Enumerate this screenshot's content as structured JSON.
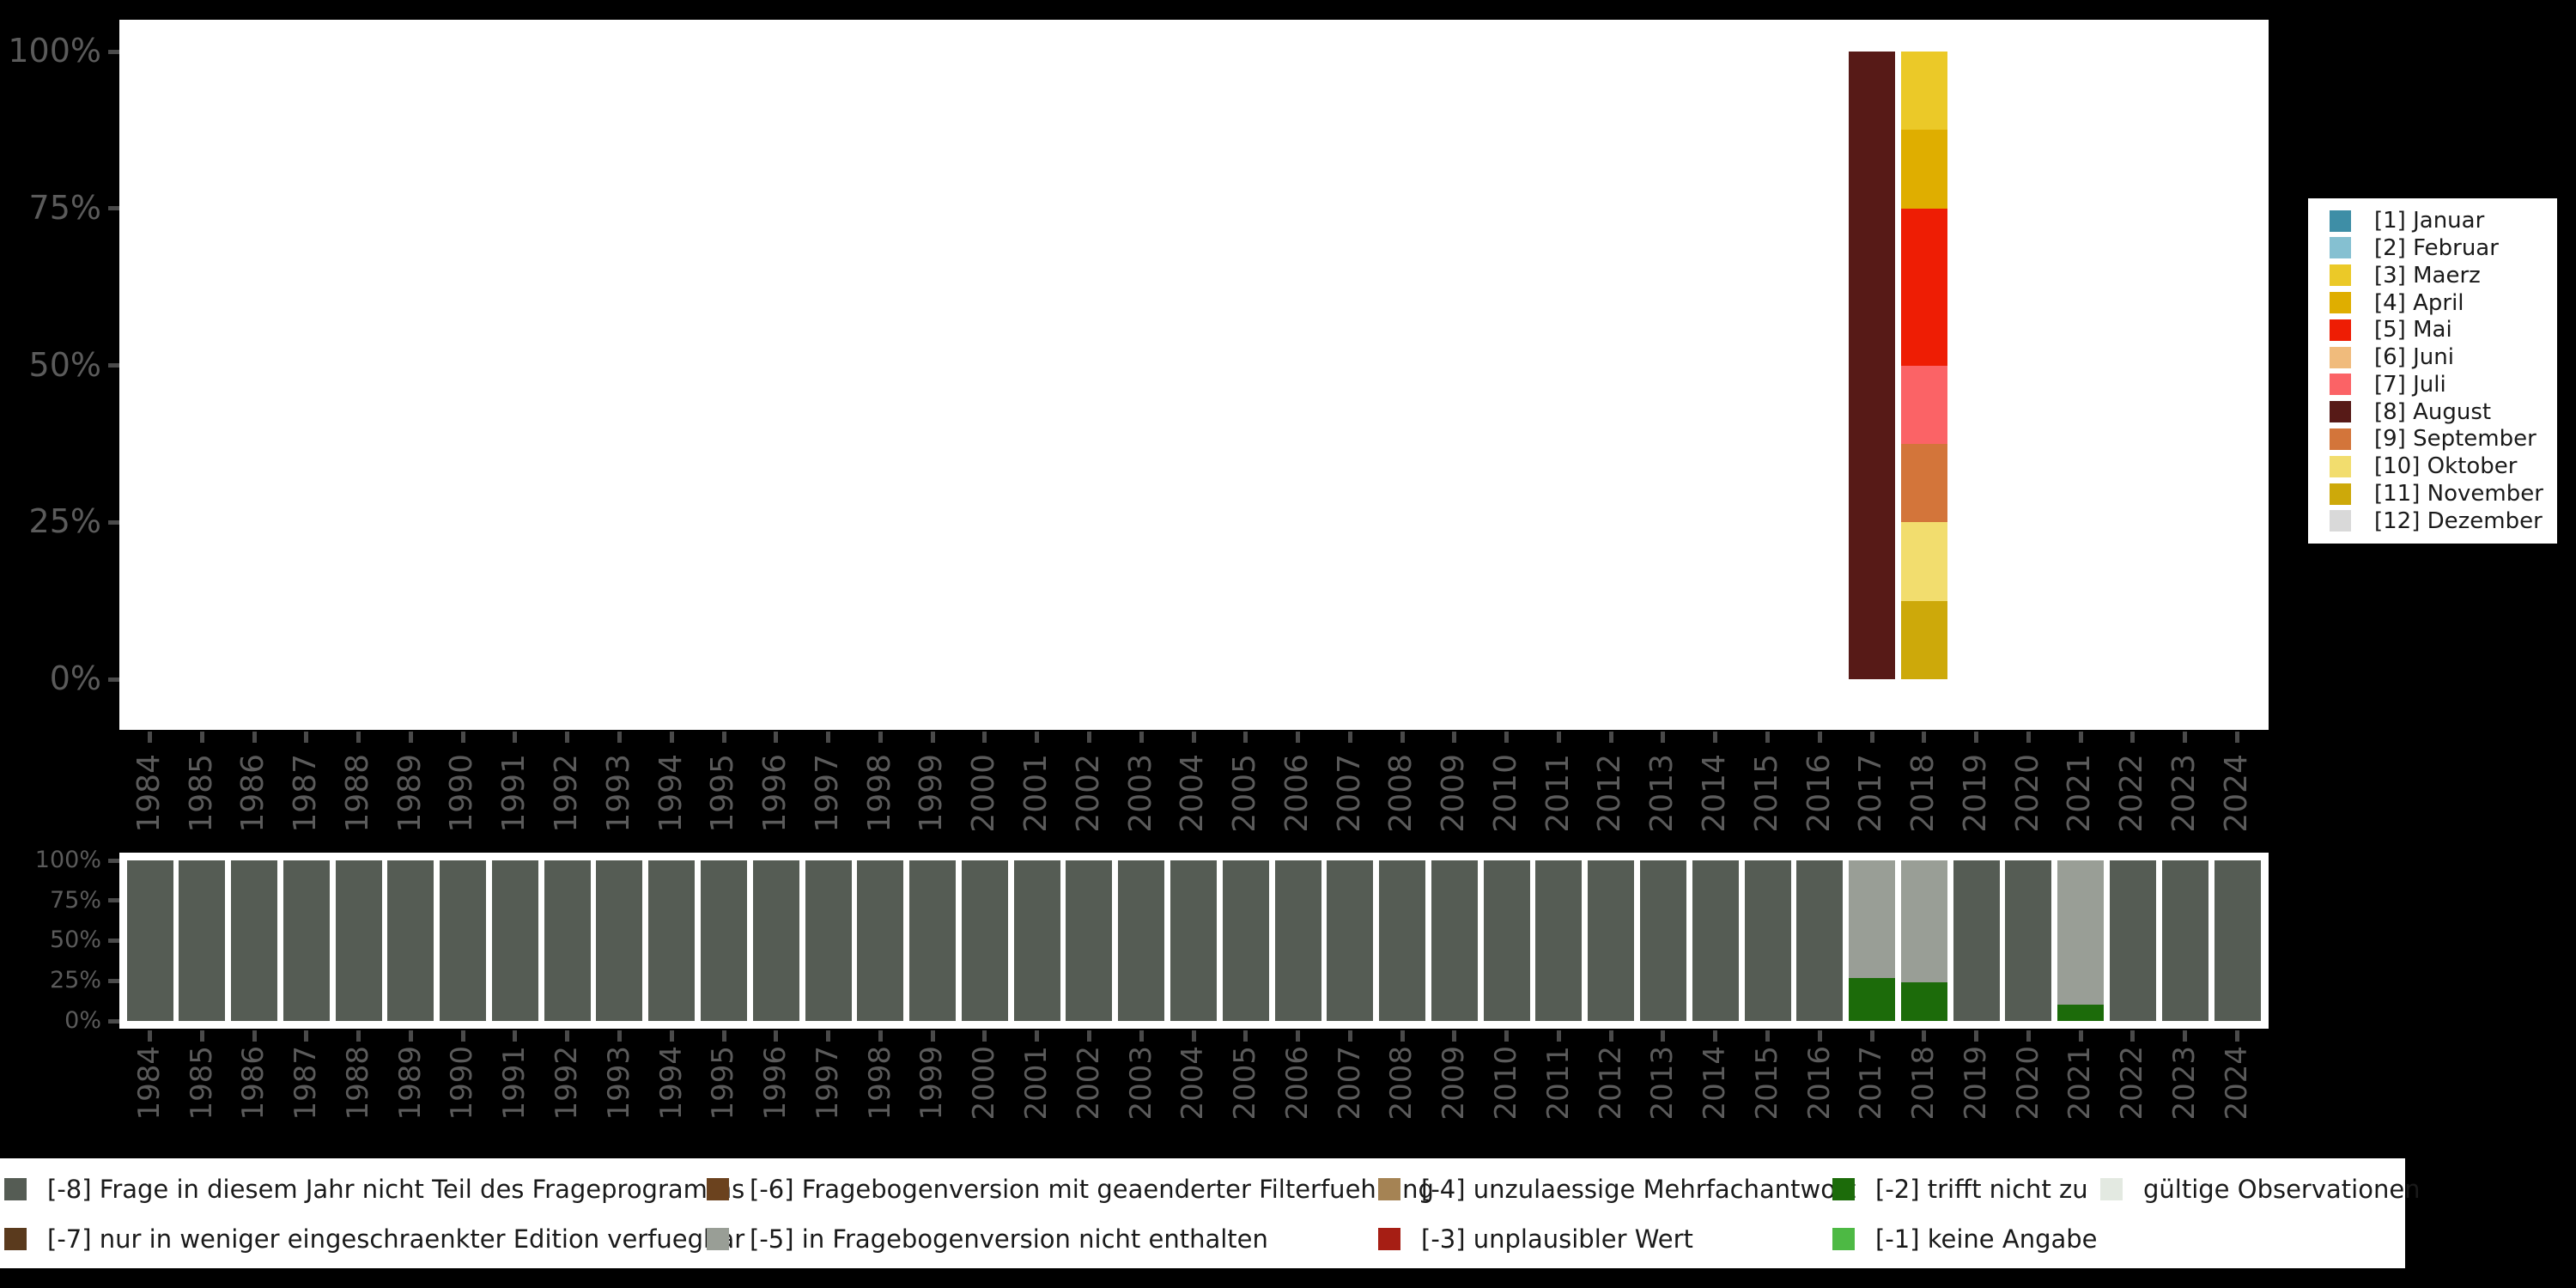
{
  "figure": {
    "background": "#000000",
    "axis_text_color": "#5b5b5b",
    "tick_color": "#4a4a4a"
  },
  "axes": {
    "y_tick_labels": [
      "100%",
      "75%",
      "50%",
      "25%",
      "0%"
    ],
    "years": [
      "1984",
      "1985",
      "1986",
      "1987",
      "1988",
      "1989",
      "1990",
      "1991",
      "1992",
      "1993",
      "1994",
      "1995",
      "1996",
      "1997",
      "1998",
      "1999",
      "2000",
      "2001",
      "2002",
      "2003",
      "2004",
      "2005",
      "2006",
      "2007",
      "2008",
      "2009",
      "2010",
      "2011",
      "2012",
      "2013",
      "2014",
      "2015",
      "2016",
      "2017",
      "2018",
      "2019",
      "2020",
      "2021",
      "2022",
      "2023",
      "2024"
    ]
  },
  "month_legend": {
    "items": [
      {
        "label": "[1] Januar",
        "color": "#3E8EA6"
      },
      {
        "label": "[2] Februar",
        "color": "#85C0D1"
      },
      {
        "label": "[3] Maerz",
        "color": "#EBC928"
      },
      {
        "label": "[4] April",
        "color": "#DFAE00"
      },
      {
        "label": "[5] Mai",
        "color": "#EE1D04"
      },
      {
        "label": "[6] Juni",
        "color": "#F0BB7C"
      },
      {
        "label": "[7] Juli",
        "color": "#FB6366"
      },
      {
        "label": "[8] August",
        "color": "#571A17"
      },
      {
        "label": "[9] September",
        "color": "#D3753A"
      },
      {
        "label": "[10] Oktober",
        "color": "#F2DD6E"
      },
      {
        "label": "[11] November",
        "color": "#CDA90A"
      },
      {
        "label": "[12] Dezember",
        "color": "#D9D9D9"
      }
    ]
  },
  "missing_legend": {
    "items": [
      {
        "label": "[-8] Frage in diesem Jahr nicht Teil des Frageprogramms",
        "color": "#555C54",
        "col": 0,
        "row": 0
      },
      {
        "label": "[-7] nur in weniger eingeschraenkter Edition verfuegbar",
        "color": "#5A3A1D",
        "col": 0,
        "row": 1
      },
      {
        "label": "[-6] Fragebogenversion mit geaenderter Filterfuehrung",
        "color": "#6B421E",
        "col": 1,
        "row": 0
      },
      {
        "label": "[-5] in Fragebogenversion nicht enthalten",
        "color": "#999E96",
        "col": 1,
        "row": 1
      },
      {
        "label": "[-4] unzulaessige Mehrfachantwort",
        "color": "#A58354",
        "col": 2,
        "row": 0
      },
      {
        "label": "[-3] unplausibler Wert",
        "color": "#A61E14",
        "col": 2,
        "row": 1
      },
      {
        "label": "[-2] trifft nicht zu",
        "color": "#1C6B0A",
        "col": 3,
        "row": 0
      },
      {
        "label": "[-1] keine Angabe",
        "color": "#4DB944",
        "col": 3,
        "row": 1
      },
      {
        "label": "gültige Observationen",
        "color": "#E3E9E1",
        "col": 4,
        "row": 0
      }
    ]
  },
  "chart_data": [
    {
      "type": "bar",
      "stacked": true,
      "unit": "percent",
      "title": "",
      "xlabel": "",
      "ylabel": "",
      "ylim": [
        0,
        100
      ],
      "y_tick_labels": [
        "100%",
        "75%",
        "50%",
        "25%",
        "0%"
      ],
      "legend_position": "right",
      "categories": [
        "1984",
        "1985",
        "1986",
        "1987",
        "1988",
        "1989",
        "1990",
        "1991",
        "1992",
        "1993",
        "1994",
        "1995",
        "1996",
        "1997",
        "1998",
        "1999",
        "2000",
        "2001",
        "2002",
        "2003",
        "2004",
        "2005",
        "2006",
        "2007",
        "2008",
        "2009",
        "2010",
        "2011",
        "2012",
        "2013",
        "2014",
        "2015",
        "2016",
        "2017",
        "2018",
        "2019",
        "2020",
        "2021",
        "2022",
        "2023",
        "2024"
      ],
      "default_stack": [],
      "stacks": {
        "2017": [
          {
            "name": "[8] August",
            "value": 100
          }
        ],
        "2018": [
          {
            "name": "[3] Maerz",
            "value": 12.5
          },
          {
            "name": "[4] April",
            "value": 12.5
          },
          {
            "name": "[5] Mai",
            "value": 25
          },
          {
            "name": "[7] Juli",
            "value": 12.5
          },
          {
            "name": "[9] September",
            "value": 12.5
          },
          {
            "name": "[10] Oktober",
            "value": 12.5
          },
          {
            "name": "[11] November",
            "value": 12.5
          }
        ]
      }
    },
    {
      "type": "bar",
      "stacked": true,
      "unit": "percent",
      "title": "",
      "xlabel": "",
      "ylabel": "",
      "ylim": [
        0,
        100
      ],
      "y_tick_labels": [
        "100%",
        "75%",
        "50%",
        "25%",
        "0%"
      ],
      "legend_position": "bottom",
      "categories": [
        "1984",
        "1985",
        "1986",
        "1987",
        "1988",
        "1989",
        "1990",
        "1991",
        "1992",
        "1993",
        "1994",
        "1995",
        "1996",
        "1997",
        "1998",
        "1999",
        "2000",
        "2001",
        "2002",
        "2003",
        "2004",
        "2005",
        "2006",
        "2007",
        "2008",
        "2009",
        "2010",
        "2011",
        "2012",
        "2013",
        "2014",
        "2015",
        "2016",
        "2017",
        "2018",
        "2019",
        "2020",
        "2021",
        "2022",
        "2023",
        "2024"
      ],
      "default_stack": [
        {
          "name": "[-8] Frage in diesem Jahr nicht Teil des Frageprogramms",
          "value": 100
        }
      ],
      "stacks": {
        "2017": [
          {
            "name": "[-5] in Fragebogenversion nicht enthalten",
            "value": 73
          },
          {
            "name": "[-2] trifft nicht zu",
            "value": 27
          }
        ],
        "2018": [
          {
            "name": "[-5] in Fragebogenversion nicht enthalten",
            "value": 76
          },
          {
            "name": "[-2] trifft nicht zu",
            "value": 24
          }
        ],
        "2021": [
          {
            "name": "[-5] in Fragebogenversion nicht enthalten",
            "value": 90
          },
          {
            "name": "[-2] trifft nicht zu",
            "value": 10
          }
        ]
      }
    }
  ]
}
